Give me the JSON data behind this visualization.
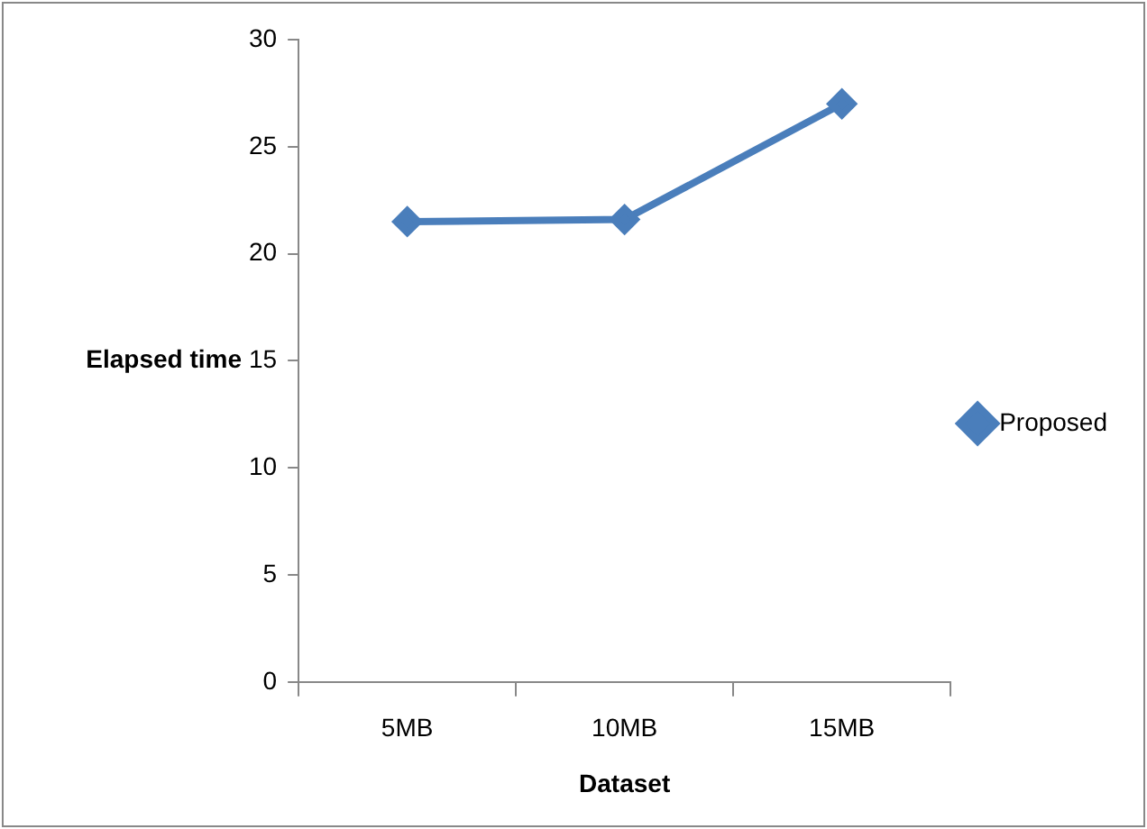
{
  "chart_data": {
    "type": "line",
    "xlabel": "Dataset",
    "ylabel": "Elapsed time",
    "categories": [
      "5MB",
      "10MB",
      "15MB"
    ],
    "series": [
      {
        "name": "Proposed",
        "color": "#4a7ebb",
        "values": [
          21.5,
          21.6,
          27
        ]
      }
    ],
    "ylim": [
      0,
      30
    ],
    "yticks": [
      0,
      5,
      10,
      15,
      20,
      25,
      30
    ],
    "grid": false,
    "legend": "right",
    "marker": "diamond",
    "line_style": "solid"
  }
}
